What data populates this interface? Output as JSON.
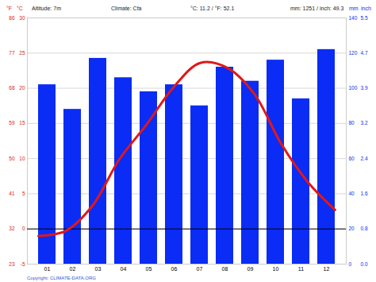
{
  "chart_data": {
    "type": "bar+line",
    "annotations": [
      "Altitude: 7m",
      "Climate: Cfa",
      "°C: 11.2 / °F: 52.1",
      "mm: 1251 / inch: 49.3"
    ],
    "caption": "Copyright: CLIMATE-DATA.ORG",
    "categories": [
      "01",
      "02",
      "03",
      "04",
      "05",
      "06",
      "07",
      "08",
      "09",
      "10",
      "11",
      "12"
    ],
    "series": [
      {
        "name": "mm",
        "type": "bar",
        "axis": "y2",
        "color": "#0a2cf5",
        "values": [
          102,
          88,
          117,
          106,
          98,
          102,
          90,
          112,
          104,
          116,
          94,
          122
        ]
      },
      {
        "name": "°C",
        "type": "line",
        "color": "#e01818",
        "values": [
          -1.0,
          -0.3,
          3.3,
          9.9,
          14.8,
          20.1,
          23.6,
          22.9,
          19.2,
          12.1,
          6.6,
          2.7
        ]
      }
    ],
    "y_label": "°C",
    "y_alt_label": "°F",
    "ylim": [
      -5,
      30
    ],
    "yticks": [
      -5,
      0,
      5,
      10,
      15,
      20,
      25,
      30
    ],
    "y_alt_ticks": [
      {
        "value": -5,
        "label": "23"
      },
      {
        "value": 0,
        "label": "32"
      },
      {
        "value": 5,
        "label": "41"
      },
      {
        "value": 10,
        "label": "50"
      },
      {
        "value": 15,
        "label": "59"
      },
      {
        "value": 20,
        "label": "68"
      },
      {
        "value": 25,
        "label": "77"
      },
      {
        "value": 30,
        "label": "86"
      }
    ],
    "y2_label": "mm",
    "y2_alt_label": "inch",
    "y2lim": [
      0,
      140
    ],
    "y2ticks": [
      0,
      20,
      40,
      60,
      80,
      100,
      120,
      140
    ],
    "y2_alt_ticks": [
      {
        "value": 0,
        "label": "0.0"
      },
      {
        "value": 20,
        "label": "0.8"
      },
      {
        "value": 40,
        "label": "1.6"
      },
      {
        "value": 60,
        "label": "2.4"
      },
      {
        "value": 80,
        "label": "3.2"
      },
      {
        "value": 100,
        "label": "3.9"
      },
      {
        "value": 120,
        "label": "4.7"
      },
      {
        "value": 140,
        "label": "5.5"
      }
    ],
    "grid": true
  }
}
